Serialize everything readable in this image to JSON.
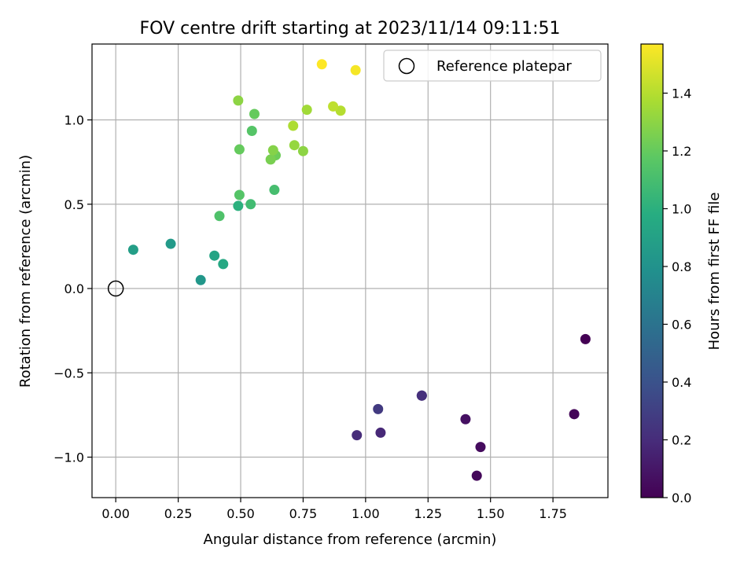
{
  "chart_data": {
    "type": "scatter",
    "title": "FOV centre drift starting at 2023/11/14 09:11:51",
    "xlabel": "Angular distance from reference (arcmin)",
    "ylabel": "Rotation from reference (arcmin)",
    "xlim": [
      -0.095,
      1.97
    ],
    "ylim": [
      -1.24,
      1.45
    ],
    "xticks": [
      0.0,
      0.25,
      0.5,
      0.75,
      1.0,
      1.25,
      1.5,
      1.75
    ],
    "xtick_labels": [
      "0.00",
      "0.25",
      "0.50",
      "0.75",
      "1.00",
      "1.25",
      "1.50",
      "1.75"
    ],
    "yticks": [
      -1.0,
      -0.5,
      0.0,
      0.5,
      1.0
    ],
    "ytick_labels": [
      "−1.0",
      "−0.5",
      "0.0",
      "0.5",
      "1.0"
    ],
    "grid": true,
    "colormap": "viridis",
    "colorbar": {
      "label": "Hours from first FF file",
      "range": [
        0.0,
        1.57
      ],
      "ticks": [
        0.0,
        0.2,
        0.4,
        0.6,
        0.8,
        1.0,
        1.2,
        1.4
      ],
      "tick_labels": [
        "0.0",
        "0.2",
        "0.4",
        "0.6",
        "0.8",
        "1.0",
        "1.2",
        "1.4"
      ]
    },
    "legend": {
      "placement": "top-right",
      "entries": [
        {
          "label": "Reference platepar",
          "marker": "open-circle"
        }
      ]
    },
    "reference_point": {
      "x": 0.0,
      "y": 0.0
    },
    "points": [
      {
        "x": 1.88,
        "y": -0.3,
        "c": 0.0
      },
      {
        "x": 1.835,
        "y": -0.745,
        "c": 0.02
      },
      {
        "x": 1.445,
        "y": -1.11,
        "c": 0.03
      },
      {
        "x": 1.46,
        "y": -0.94,
        "c": 0.05
      },
      {
        "x": 1.4,
        "y": -0.775,
        "c": 0.07
      },
      {
        "x": 1.225,
        "y": -0.635,
        "c": 0.2
      },
      {
        "x": 1.225,
        "y": -0.635,
        "c": 0.22
      },
      {
        "x": 1.06,
        "y": -0.855,
        "c": 0.18
      },
      {
        "x": 0.965,
        "y": -0.87,
        "c": 0.2
      },
      {
        "x": 1.05,
        "y": -0.715,
        "c": 0.27
      },
      {
        "x": 0.34,
        "y": 0.05,
        "c": 0.83
      },
      {
        "x": 0.22,
        "y": 0.265,
        "c": 0.85
      },
      {
        "x": 0.07,
        "y": 0.23,
        "c": 0.88
      },
      {
        "x": 0.395,
        "y": 0.195,
        "c": 0.92
      },
      {
        "x": 0.43,
        "y": 0.145,
        "c": 0.95
      },
      {
        "x": 0.49,
        "y": 0.49,
        "c": 1.0
      },
      {
        "x": 0.54,
        "y": 0.5,
        "c": 1.08
      },
      {
        "x": 0.635,
        "y": 0.585,
        "c": 1.1
      },
      {
        "x": 0.415,
        "y": 0.43,
        "c": 1.13
      },
      {
        "x": 0.495,
        "y": 0.555,
        "c": 1.15
      },
      {
        "x": 0.545,
        "y": 0.935,
        "c": 1.15
      },
      {
        "x": 0.495,
        "y": 0.825,
        "c": 1.2
      },
      {
        "x": 0.555,
        "y": 1.035,
        "c": 1.2
      },
      {
        "x": 0.64,
        "y": 0.79,
        "c": 1.22
      },
      {
        "x": 0.62,
        "y": 0.765,
        "c": 1.25
      },
      {
        "x": 0.63,
        "y": 0.82,
        "c": 1.28
      },
      {
        "x": 0.75,
        "y": 0.815,
        "c": 1.3
      },
      {
        "x": 0.49,
        "y": 1.115,
        "c": 1.3
      },
      {
        "x": 0.715,
        "y": 0.85,
        "c": 1.32
      },
      {
        "x": 0.765,
        "y": 1.06,
        "c": 1.35
      },
      {
        "x": 0.71,
        "y": 0.965,
        "c": 1.38
      },
      {
        "x": 0.9,
        "y": 1.055,
        "c": 1.4
      },
      {
        "x": 0.87,
        "y": 1.08,
        "c": 1.42
      },
      {
        "x": 0.96,
        "y": 1.295,
        "c": 1.55
      },
      {
        "x": 0.825,
        "y": 1.33,
        "c": 1.57
      }
    ]
  }
}
